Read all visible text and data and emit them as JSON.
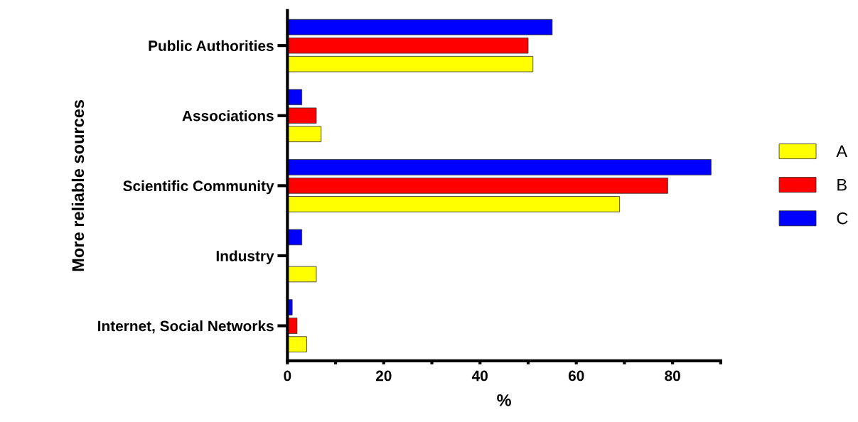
{
  "chart_data": {
    "type": "bar",
    "orientation": "horizontal",
    "xlabel": "%",
    "ylabel": "More reliable sources",
    "categories": [
      "Public Authorities",
      "Associations",
      "Scientific Community",
      "Industry",
      "Internet, Social Networks"
    ],
    "series": [
      {
        "name": "A",
        "color": "#ffff00",
        "values": [
          51,
          7,
          69,
          6,
          4
        ]
      },
      {
        "name": "B",
        "color": "#ff0000",
        "values": [
          50,
          6,
          79,
          null,
          2
        ]
      },
      {
        "name": "C",
        "color": "#0000ff",
        "values": [
          55,
          3,
          88,
          3,
          1
        ]
      }
    ],
    "xlim": [
      0,
      90
    ],
    "xticks": [
      0,
      {
        "value": 10,
        "label": null
      },
      20,
      {
        "value": 30,
        "label": null
      },
      40,
      {
        "value": 50,
        "label": null
      },
      60,
      {
        "value": 70,
        "label": null
      },
      80,
      {
        "value": 90,
        "label": null
      }
    ],
    "legend": "right",
    "grid": false
  }
}
